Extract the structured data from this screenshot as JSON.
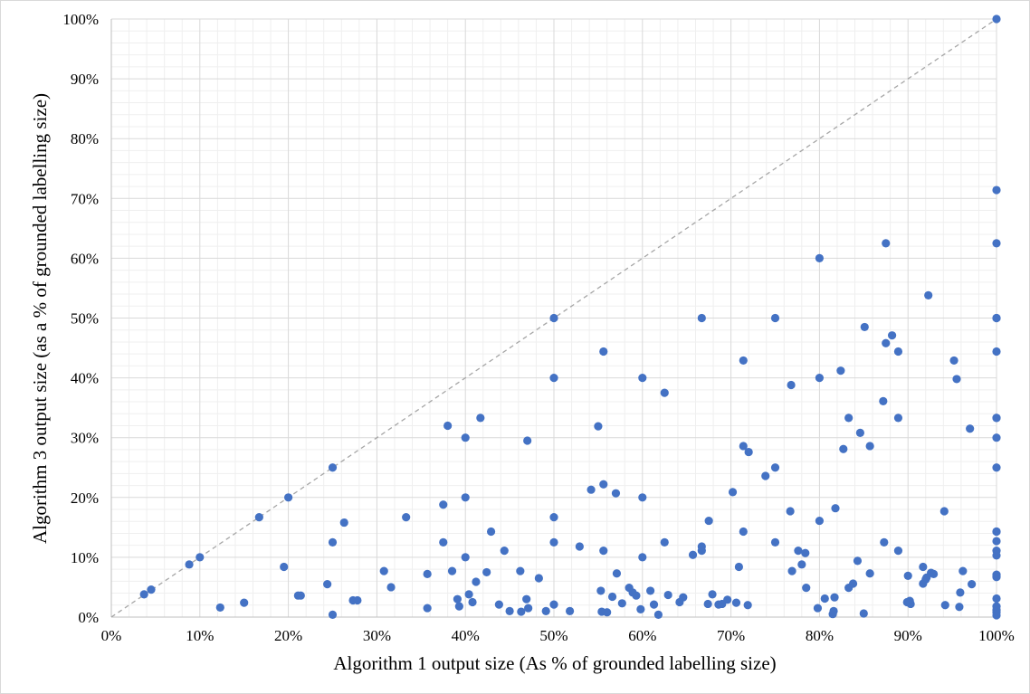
{
  "chart_data": {
    "type": "scatter",
    "title": "",
    "xlabel": "Algorithm 1 output size (As % of grounded labelling size)",
    "ylabel": "Algorithm 3 output size (as a % of grounded labelling size)",
    "xlim": [
      0,
      100
    ],
    "ylim": [
      0,
      100
    ],
    "x_ticks": [
      "0%",
      "10%",
      "20%",
      "30%",
      "40%",
      "50%",
      "60%",
      "70%",
      "80%",
      "90%",
      "100%"
    ],
    "y_ticks": [
      "0%",
      "10%",
      "20%",
      "30%",
      "40%",
      "50%",
      "60%",
      "70%",
      "80%",
      "90%",
      "100%"
    ],
    "grid": true,
    "minor_grid": true,
    "reference_line": {
      "style": "dashed",
      "from": [
        0,
        0
      ],
      "to": [
        100,
        100
      ],
      "color": "#a6a6a6"
    },
    "marker_color": "#4472c4",
    "series": [
      {
        "points": [
          [
            3.7,
            3.8
          ],
          [
            4.5,
            4.6
          ],
          [
            8.8,
            8.8
          ],
          [
            10.0,
            10.0
          ],
          [
            12.3,
            1.6
          ],
          [
            15.0,
            2.4
          ],
          [
            16.7,
            16.7
          ],
          [
            19.5,
            8.4
          ],
          [
            20.0,
            20.0
          ],
          [
            21.1,
            3.6
          ],
          [
            21.4,
            3.6
          ],
          [
            24.4,
            5.5
          ],
          [
            25.0,
            25.0
          ],
          [
            25.0,
            12.5
          ],
          [
            25.0,
            0.4
          ],
          [
            26.3,
            15.8
          ],
          [
            27.3,
            2.8
          ],
          [
            27.8,
            2.8
          ],
          [
            30.8,
            7.7
          ],
          [
            31.6,
            5.0
          ],
          [
            33.3,
            16.7
          ],
          [
            35.7,
            7.2
          ],
          [
            35.7,
            1.5
          ],
          [
            37.5,
            18.8
          ],
          [
            37.5,
            12.5
          ],
          [
            38.0,
            32.0
          ],
          [
            38.5,
            7.7
          ],
          [
            39.1,
            3.0
          ],
          [
            39.3,
            1.8
          ],
          [
            40.0,
            30.0
          ],
          [
            40.0,
            20.0
          ],
          [
            40.0,
            10.0
          ],
          [
            40.4,
            3.8
          ],
          [
            40.8,
            2.5
          ],
          [
            41.2,
            5.9
          ],
          [
            41.7,
            33.3
          ],
          [
            42.4,
            7.5
          ],
          [
            42.9,
            14.3
          ],
          [
            43.8,
            2.1
          ],
          [
            44.4,
            11.1
          ],
          [
            45.0,
            1.0
          ],
          [
            46.2,
            7.7
          ],
          [
            46.3,
            0.9
          ],
          [
            46.9,
            3.0
          ],
          [
            47.0,
            29.5
          ],
          [
            47.1,
            1.5
          ],
          [
            48.3,
            6.5
          ],
          [
            49.1,
            1.0
          ],
          [
            50.0,
            50.0
          ],
          [
            50.0,
            40.0
          ],
          [
            50.0,
            16.7
          ],
          [
            50.0,
            12.5
          ],
          [
            50.0,
            2.1
          ],
          [
            51.8,
            1.0
          ],
          [
            52.9,
            11.8
          ],
          [
            54.2,
            21.3
          ],
          [
            55.0,
            31.9
          ],
          [
            55.3,
            4.4
          ],
          [
            55.4,
            0.9
          ],
          [
            55.6,
            44.4
          ],
          [
            55.6,
            22.2
          ],
          [
            55.6,
            11.1
          ],
          [
            56.0,
            0.8
          ],
          [
            56.6,
            3.4
          ],
          [
            57.0,
            20.7
          ],
          [
            57.1,
            7.3
          ],
          [
            57.7,
            2.3
          ],
          [
            58.5,
            4.9
          ],
          [
            58.9,
            4.1
          ],
          [
            59.3,
            3.6
          ],
          [
            59.8,
            1.3
          ],
          [
            60.0,
            40.0
          ],
          [
            60.0,
            20.0
          ],
          [
            60.0,
            10.0
          ],
          [
            60.9,
            4.4
          ],
          [
            61.3,
            2.1
          ],
          [
            61.8,
            0.4
          ],
          [
            62.5,
            37.5
          ],
          [
            62.5,
            12.5
          ],
          [
            62.9,
            3.7
          ],
          [
            64.2,
            2.5
          ],
          [
            64.6,
            3.3
          ],
          [
            65.7,
            10.4
          ],
          [
            66.7,
            50.0
          ],
          [
            66.7,
            11.8
          ],
          [
            66.7,
            11.1
          ],
          [
            67.4,
            2.2
          ],
          [
            67.5,
            16.1
          ],
          [
            67.9,
            3.8
          ],
          [
            68.6,
            2.1
          ],
          [
            69.0,
            2.2
          ],
          [
            69.6,
            2.9
          ],
          [
            70.2,
            20.9
          ],
          [
            70.6,
            2.4
          ],
          [
            70.9,
            8.4
          ],
          [
            71.4,
            42.9
          ],
          [
            71.4,
            28.6
          ],
          [
            71.4,
            14.3
          ],
          [
            71.9,
            2.0
          ],
          [
            72.0,
            27.6
          ],
          [
            73.9,
            23.6
          ],
          [
            75.0,
            50.0
          ],
          [
            75.0,
            25.0
          ],
          [
            75.0,
            12.5
          ],
          [
            76.7,
            17.7
          ],
          [
            76.8,
            38.8
          ],
          [
            76.9,
            7.7
          ],
          [
            77.6,
            11.1
          ],
          [
            78.0,
            8.8
          ],
          [
            78.4,
            10.7
          ],
          [
            78.5,
            4.9
          ],
          [
            79.8,
            1.5
          ],
          [
            80.0,
            60.0
          ],
          [
            80.0,
            40.0
          ],
          [
            80.0,
            16.1
          ],
          [
            80.6,
            3.1
          ],
          [
            81.5,
            0.5
          ],
          [
            81.6,
            1.0
          ],
          [
            81.7,
            3.3
          ],
          [
            81.8,
            18.2
          ],
          [
            82.4,
            41.2
          ],
          [
            82.7,
            28.1
          ],
          [
            83.3,
            33.3
          ],
          [
            83.3,
            4.9
          ],
          [
            83.8,
            5.6
          ],
          [
            84.3,
            9.4
          ],
          [
            84.6,
            30.8
          ],
          [
            85.0,
            0.6
          ],
          [
            85.1,
            48.5
          ],
          [
            85.7,
            28.6
          ],
          [
            85.7,
            7.3
          ],
          [
            87.2,
            36.1
          ],
          [
            87.3,
            12.5
          ],
          [
            87.5,
            62.5
          ],
          [
            87.5,
            45.8
          ],
          [
            88.2,
            47.1
          ],
          [
            88.9,
            44.4
          ],
          [
            88.9,
            33.3
          ],
          [
            88.9,
            11.1
          ],
          [
            89.9,
            2.5
          ],
          [
            90.0,
            6.9
          ],
          [
            90.2,
            2.7
          ],
          [
            90.3,
            2.2
          ],
          [
            91.7,
            8.4
          ],
          [
            91.7,
            5.6
          ],
          [
            92.0,
            6.3
          ],
          [
            92.1,
            6.6
          ],
          [
            92.3,
            53.8
          ],
          [
            92.6,
            7.4
          ],
          [
            92.9,
            7.2
          ],
          [
            94.1,
            17.7
          ],
          [
            94.2,
            2.0
          ],
          [
            95.2,
            42.9
          ],
          [
            95.5,
            39.8
          ],
          [
            95.8,
            1.7
          ],
          [
            95.9,
            4.1
          ],
          [
            96.2,
            7.7
          ],
          [
            97.0,
            31.5
          ],
          [
            97.2,
            5.5
          ],
          [
            100.0,
            100.0
          ],
          [
            100.0,
            71.4
          ],
          [
            100.0,
            62.5
          ],
          [
            100.0,
            50.0
          ],
          [
            100.0,
            50.0
          ],
          [
            100.0,
            44.4
          ],
          [
            100.0,
            33.3
          ],
          [
            100.0,
            33.3
          ],
          [
            100.0,
            30.0
          ],
          [
            100.0,
            25.0
          ],
          [
            100.0,
            14.3
          ],
          [
            100.0,
            14.3
          ],
          [
            100.0,
            12.7
          ],
          [
            100.0,
            11.1
          ],
          [
            100.0,
            10.3
          ],
          [
            100.0,
            7.1
          ],
          [
            100.0,
            6.7
          ],
          [
            100.0,
            3.1
          ],
          [
            100.0,
            1.8
          ],
          [
            100.0,
            1.2
          ],
          [
            100.0,
            0.8
          ],
          [
            100.0,
            0.3
          ]
        ]
      }
    ]
  }
}
